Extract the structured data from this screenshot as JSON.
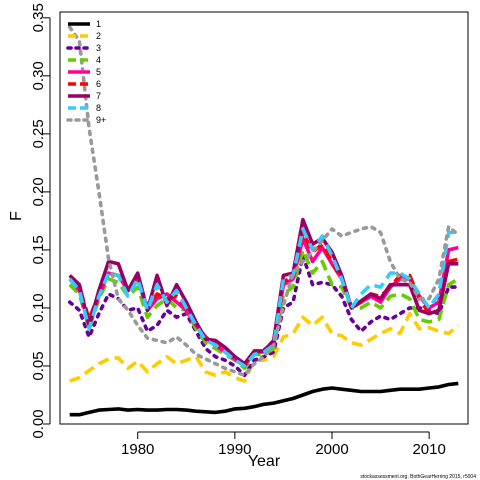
{
  "chart_data": {
    "type": "line",
    "xlabel": "Year",
    "ylabel": "F",
    "xlim": [
      1972,
      2014
    ],
    "ylim": [
      0,
      0.355
    ],
    "x_ticks": [
      1980,
      1990,
      2000,
      2010
    ],
    "x_tick_labels": [
      "1980",
      "1990",
      "2000",
      "2010"
    ],
    "y_ticks": [
      0,
      0.05,
      0.1,
      0.15,
      0.2,
      0.25,
      0.3,
      0.35
    ],
    "y_tick_labels": [
      "0.00",
      "0.05",
      "0.10",
      "0.15",
      "0.20",
      "0.25",
      "0.30",
      "0.35"
    ],
    "legend_position": "top-left",
    "footnote": "stockassessment.org, BothGearHerring 2015, r5004",
    "x": [
      1973,
      1974,
      1975,
      1976,
      1977,
      1978,
      1979,
      1980,
      1981,
      1982,
      1983,
      1984,
      1985,
      1986,
      1987,
      1988,
      1989,
      1990,
      1991,
      1992,
      1993,
      1994,
      1995,
      1996,
      1997,
      1998,
      1999,
      2000,
      2001,
      2002,
      2003,
      2004,
      2005,
      2006,
      2007,
      2008,
      2009,
      2010,
      2011,
      2012,
      2013
    ],
    "series": [
      {
        "name": "1",
        "color": "#000000",
        "dash": "solid",
        "values": [
          0.008,
          0.008,
          0.01,
          0.012,
          0.0125,
          0.013,
          0.012,
          0.0125,
          0.012,
          0.012,
          0.0125,
          0.0125,
          0.012,
          0.011,
          0.0105,
          0.01,
          0.011,
          0.013,
          0.0135,
          0.015,
          0.017,
          0.018,
          0.02,
          0.022,
          0.025,
          0.028,
          0.03,
          0.031,
          0.03,
          0.029,
          0.028,
          0.028,
          0.028,
          0.029,
          0.03,
          0.03,
          0.03,
          0.031,
          0.032,
          0.034,
          0.035
        ]
      },
      {
        "name": "2",
        "color": "#ffcc00",
        "dash": "dashed",
        "values": [
          0.037,
          0.04,
          0.046,
          0.052,
          0.056,
          0.057,
          0.048,
          0.054,
          0.045,
          0.052,
          0.058,
          0.052,
          0.055,
          0.058,
          0.045,
          0.042,
          0.045,
          0.04,
          0.037,
          0.055,
          0.055,
          0.058,
          0.075,
          0.078,
          0.092,
          0.085,
          0.092,
          0.078,
          0.076,
          0.07,
          0.068,
          0.073,
          0.078,
          0.082,
          0.078,
          0.095,
          0.082,
          0.083,
          0.08,
          0.078,
          0.085
        ]
      },
      {
        "name": "3",
        "color": "#660099",
        "dash": "dotted",
        "values": [
          0.105,
          0.098,
          0.075,
          0.095,
          0.112,
          0.108,
          0.098,
          0.1,
          0.08,
          0.085,
          0.098,
          0.092,
          0.095,
          0.08,
          0.065,
          0.058,
          0.055,
          0.05,
          0.042,
          0.055,
          0.058,
          0.062,
          0.1,
          0.105,
          0.145,
          0.12,
          0.122,
          0.12,
          0.11,
          0.09,
          0.08,
          0.088,
          0.093,
          0.09,
          0.095,
          0.1,
          0.1,
          0.098,
          0.095,
          0.118,
          0.118
        ]
      },
      {
        "name": "4",
        "color": "#66cc00",
        "dash": "dashed",
        "values": [
          0.12,
          0.112,
          0.082,
          0.108,
          0.125,
          0.122,
          0.11,
          0.118,
          0.092,
          0.102,
          0.108,
          0.1,
          0.098,
          0.082,
          0.07,
          0.065,
          0.06,
          0.055,
          0.048,
          0.06,
          0.06,
          0.065,
          0.112,
          0.118,
          0.15,
          0.13,
          0.14,
          0.12,
          0.118,
          0.1,
          0.1,
          0.105,
          0.1,
          0.11,
          0.112,
          0.108,
          0.09,
          0.088,
          0.09,
          0.12,
          0.125
        ]
      },
      {
        "name": "5",
        "color": "#ff0099",
        "dash": "solid",
        "values": [
          0.125,
          0.115,
          0.085,
          0.11,
          0.13,
          0.128,
          0.115,
          0.125,
          0.098,
          0.108,
          0.112,
          0.105,
          0.098,
          0.085,
          0.075,
          0.068,
          0.062,
          0.056,
          0.05,
          0.062,
          0.062,
          0.068,
          0.12,
          0.125,
          0.16,
          0.14,
          0.152,
          0.138,
          0.125,
          0.1,
          0.105,
          0.11,
          0.105,
          0.118,
          0.125,
          0.125,
          0.11,
          0.1,
          0.105,
          0.15,
          0.152
        ]
      },
      {
        "name": "6",
        "color": "#ff0000",
        "dash": "dashed",
        "values": [
          0.125,
          0.118,
          0.09,
          0.112,
          0.13,
          0.128,
          0.115,
          0.128,
          0.1,
          0.112,
          0.108,
          0.11,
          0.1,
          0.085,
          0.075,
          0.068,
          0.064,
          0.058,
          0.05,
          0.062,
          0.064,
          0.07,
          0.122,
          0.128,
          0.165,
          0.148,
          0.155,
          0.14,
          0.125,
          0.1,
          0.105,
          0.112,
          0.11,
          0.118,
          0.128,
          0.128,
          0.108,
          0.095,
          0.098,
          0.14,
          0.142
        ]
      },
      {
        "name": "7",
        "color": "#990066",
        "dash": "solid",
        "values": [
          0.128,
          0.12,
          0.085,
          0.115,
          0.14,
          0.138,
          0.115,
          0.13,
          0.098,
          0.128,
          0.102,
          0.12,
          0.105,
          0.088,
          0.073,
          0.072,
          0.066,
          0.058,
          0.052,
          0.063,
          0.063,
          0.072,
          0.128,
          0.13,
          0.176,
          0.155,
          0.16,
          0.148,
          0.128,
          0.1,
          0.106,
          0.112,
          0.108,
          0.12,
          0.12,
          0.12,
          0.098,
          0.095,
          0.098,
          0.138,
          0.138
        ]
      },
      {
        "name": "8",
        "color": "#33ccff",
        "dash": "dashed",
        "values": [
          0.125,
          0.115,
          0.082,
          0.11,
          0.13,
          0.128,
          0.11,
          0.125,
          0.098,
          0.12,
          0.105,
          0.115,
          0.1,
          0.085,
          0.072,
          0.068,
          0.062,
          0.055,
          0.05,
          0.06,
          0.062,
          0.068,
          0.125,
          0.128,
          0.168,
          0.15,
          0.162,
          0.145,
          0.125,
          0.1,
          0.112,
          0.12,
          0.118,
          0.13,
          0.13,
          0.125,
          0.112,
          0.1,
          0.112,
          0.165,
          0.165
        ]
      },
      {
        "name": "9+",
        "color": "#999999",
        "dash": "dotted",
        "values": [
          0.342,
          0.33,
          0.255,
          0.2,
          0.142,
          0.108,
          0.098,
          0.085,
          0.074,
          0.072,
          0.07,
          0.075,
          0.068,
          0.06,
          0.056,
          0.052,
          0.048,
          0.045,
          0.042,
          0.052,
          0.058,
          0.068,
          0.102,
          0.13,
          0.14,
          0.148,
          0.158,
          0.168,
          0.162,
          0.165,
          0.168,
          0.17,
          0.165,
          0.14,
          0.125,
          0.122,
          0.108,
          0.108,
          0.125,
          0.17,
          0.163
        ]
      }
    ]
  }
}
